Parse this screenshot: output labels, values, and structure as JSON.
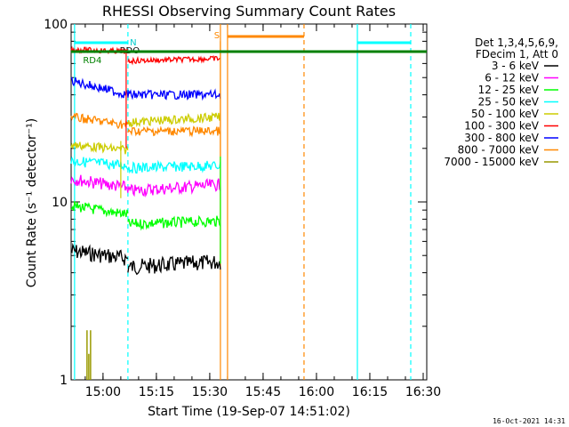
{
  "chart_data": {
    "type": "line",
    "title": "RHESSI Observing Summary Count Rates",
    "xlabel": "Start Time (19-Sep-07 14:51:02)",
    "ylabel": "Count Rate (s⁻¹ detector⁻¹)",
    "yscale": "log",
    "ylim": [
      1,
      100
    ],
    "xlim": [
      "14:51:02",
      "16:31:00"
    ],
    "x_ticks": [
      "15:00",
      "15:15",
      "15:30",
      "15:45",
      "16:00",
      "16:15",
      "16:30"
    ],
    "y_ticks": [
      "1",
      "10",
      "100"
    ],
    "legend_title": [
      "Det 1,3,4,5,6,9,",
      "FDecim 1, Att 0"
    ],
    "legend_position": "right",
    "series": [
      {
        "name": "3 - 6 keV",
        "color": "#000000",
        "segments": [
          [
            [
              "14:51",
              5.3
            ],
            [
              "15:07",
              4.8
            ]
          ],
          [
            [
              "15:07",
              4.3
            ],
            [
              "15:33",
              4.6
            ]
          ]
        ]
      },
      {
        "name": "6 - 12 keV",
        "color": "#ff00ff",
        "segments": [
          [
            [
              "14:51",
              13.5
            ],
            [
              "15:07",
              12.0
            ]
          ],
          [
            [
              "15:07",
              11.5
            ],
            [
              "15:33",
              12.5
            ]
          ]
        ]
      },
      {
        "name": "12 - 25 keV",
        "color": "#00ff00",
        "segments": [
          [
            [
              "14:51",
              9.5
            ],
            [
              "15:07",
              8.5
            ]
          ],
          [
            [
              "15:07",
              7.5
            ],
            [
              "15:33",
              7.8
            ]
          ]
        ]
      },
      {
        "name": "25 - 50 keV",
        "color": "#00ffff",
        "segments": [
          [
            [
              "14:51",
              17.0
            ],
            [
              "15:07",
              16.0
            ]
          ],
          [
            [
              "15:07",
              15.5
            ],
            [
              "15:33",
              16.0
            ]
          ]
        ]
      },
      {
        "name": "50 - 100 keV",
        "color": "#cccc00",
        "segments": [
          [
            [
              "14:51",
              21.0
            ],
            [
              "15:07",
              19.5
            ]
          ],
          [
            [
              "15:07",
              28.0
            ],
            [
              "15:33",
              30.0
            ]
          ]
        ]
      },
      {
        "name": "100 - 300 keV",
        "color": "#ff0000",
        "segments": [
          [
            [
              "14:51",
              72.0
            ],
            [
              "15:07",
              70.0
            ]
          ],
          [
            [
              "15:07",
              62.0
            ],
            [
              "15:33",
              64.0
            ]
          ]
        ]
      },
      {
        "name": "300 - 800 keV",
        "color": "#0000ff",
        "segments": [
          [
            [
              "14:51",
              48.0
            ],
            [
              "15:07",
              40.0
            ]
          ],
          [
            [
              "15:07",
              40.0
            ],
            [
              "15:33",
              40.0
            ]
          ]
        ]
      },
      {
        "name": "800 - 7000 keV",
        "color": "#ff8800",
        "segments": [
          [
            [
              "14:51",
              30.0
            ],
            [
              "15:07",
              27.0
            ]
          ],
          [
            [
              "15:07",
              25.0
            ],
            [
              "15:33",
              25.0
            ]
          ]
        ]
      },
      {
        "name": "7000 - 15000 keV",
        "color": "#999900",
        "segments": []
      }
    ],
    "overlay_lines": [
      {
        "color": "#008000",
        "y": 70,
        "from": "14:51",
        "to": "16:31"
      }
    ],
    "markers": [
      {
        "label": "N",
        "color": "#00cccc"
      },
      {
        "label": "S",
        "color": "#ff8800"
      },
      {
        "label": "RD4",
        "color": "#008000"
      },
      {
        "label": "RDO",
        "color": "#000000"
      }
    ]
  },
  "footer_date": "16-Oct-2021 14:31"
}
